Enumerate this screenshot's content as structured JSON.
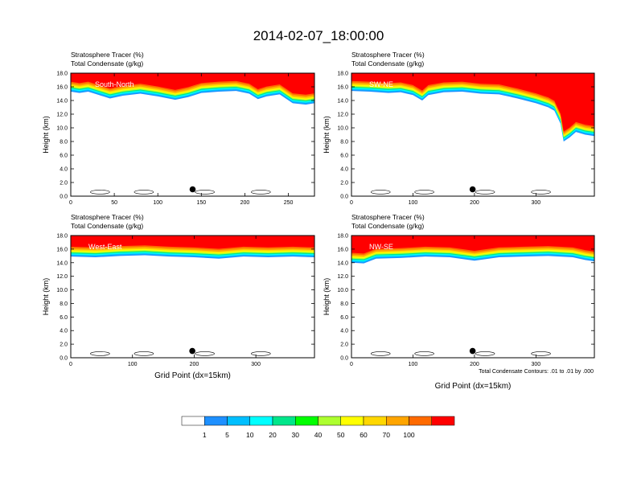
{
  "title": "2014-02-07_18:00:00",
  "chart_data": {
    "type": "heatmap",
    "panels": [
      {
        "id": "south-north",
        "label": "South-North",
        "line1": "Stratosphere Tracer   (%)",
        "line2": "Total Condensate   (g/kg)",
        "xticks": [
          0,
          50,
          100,
          150,
          200,
          250
        ],
        "xmax": 280,
        "ylabel": "Height (km)",
        "xlabel": "",
        "marker_x": 140,
        "marker_y": 1.0,
        "tropopause": [
          [
            0,
            15.3
          ],
          [
            10,
            15.1
          ],
          [
            20,
            15.3
          ],
          [
            30,
            14.9
          ],
          [
            45,
            14.3
          ],
          [
            60,
            14.7
          ],
          [
            80,
            15.0
          ],
          [
            100,
            14.6
          ],
          [
            120,
            14.1
          ],
          [
            135,
            14.5
          ],
          [
            150,
            15.1
          ],
          [
            170,
            15.3
          ],
          [
            190,
            15.4
          ],
          [
            205,
            15.0
          ],
          [
            215,
            14.2
          ],
          [
            225,
            14.6
          ],
          [
            240,
            14.9
          ],
          [
            255,
            13.6
          ],
          [
            270,
            13.4
          ],
          [
            280,
            13.6
          ]
        ]
      },
      {
        "id": "sw-ne",
        "label": "SW-NE",
        "line1": "Stratosphere Tracer   (%)",
        "line2": "Total Condensate   (g/kg)",
        "xticks": [
          0,
          100,
          200,
          300
        ],
        "xmax": 395,
        "ylabel": "Height (km)",
        "xlabel": "",
        "marker_x": 197,
        "marker_y": 1.0,
        "tropopause": [
          [
            0,
            15.4
          ],
          [
            30,
            15.3
          ],
          [
            60,
            15.1
          ],
          [
            80,
            15.2
          ],
          [
            100,
            14.8
          ],
          [
            115,
            14.0
          ],
          [
            125,
            14.8
          ],
          [
            150,
            15.2
          ],
          [
            180,
            15.3
          ],
          [
            210,
            15.0
          ],
          [
            240,
            14.9
          ],
          [
            270,
            14.3
          ],
          [
            300,
            13.6
          ],
          [
            320,
            13.0
          ],
          [
            330,
            12.5
          ],
          [
            340,
            10.6
          ],
          [
            345,
            8.0
          ],
          [
            355,
            8.6
          ],
          [
            365,
            9.4
          ],
          [
            380,
            9.0
          ],
          [
            395,
            8.8
          ]
        ]
      },
      {
        "id": "west-east",
        "label": "West-East",
        "line1": "Stratosphere Tracer   (%)",
        "line2": "Total Condensate   (g/kg)",
        "xticks": [
          0,
          100,
          200,
          300
        ],
        "xmax": 395,
        "ylabel": "Height (km)",
        "xlabel": "Grid Point (dx=15km)",
        "marker_x": 197,
        "marker_y": 1.0,
        "tropopause": [
          [
            0,
            14.9
          ],
          [
            40,
            14.8
          ],
          [
            80,
            15.0
          ],
          [
            120,
            15.1
          ],
          [
            160,
            14.9
          ],
          [
            200,
            14.8
          ],
          [
            240,
            14.6
          ],
          [
            280,
            14.9
          ],
          [
            320,
            14.8
          ],
          [
            360,
            14.9
          ],
          [
            395,
            14.8
          ]
        ]
      },
      {
        "id": "nw-se",
        "label": "NW-SE",
        "line1": "Stratosphere Tracer   (%)",
        "line2": "Total Condensate   (g/kg)",
        "xticks": [
          0,
          100,
          200,
          300
        ],
        "xmax": 395,
        "ylabel": "Height (km)",
        "xlabel": "Grid Point (dx=15km)",
        "marker_x": 197,
        "marker_y": 1.0,
        "tropopause": [
          [
            0,
            14.0
          ],
          [
            20,
            13.9
          ],
          [
            40,
            14.6
          ],
          [
            80,
            14.7
          ],
          [
            120,
            14.9
          ],
          [
            160,
            14.8
          ],
          [
            200,
            14.3
          ],
          [
            240,
            14.8
          ],
          [
            280,
            14.9
          ],
          [
            320,
            15.0
          ],
          [
            360,
            14.8
          ],
          [
            380,
            14.4
          ],
          [
            395,
            14.2
          ]
        ]
      }
    ],
    "yticks": [
      "0.0",
      "2.0",
      "4.0",
      "6.0",
      "8.0",
      "10.0",
      "12.0",
      "14.0",
      "16.0",
      "18.0"
    ],
    "ymax": 18,
    "colorbar": {
      "labels": [
        "1",
        "5",
        "10",
        "20",
        "30",
        "40",
        "50",
        "60",
        "70",
        "100"
      ],
      "colors": [
        "#ffffff",
        "#1e90ff",
        "#00bfff",
        "#00ffff",
        "#00e68a",
        "#00ff00",
        "#adff2f",
        "#ffff00",
        "#ffd700",
        "#ffa500",
        "#ff6a00",
        "#ff0000"
      ]
    },
    "contour_note": "Total Condensate Contours: .01 to .01 by .000"
  }
}
